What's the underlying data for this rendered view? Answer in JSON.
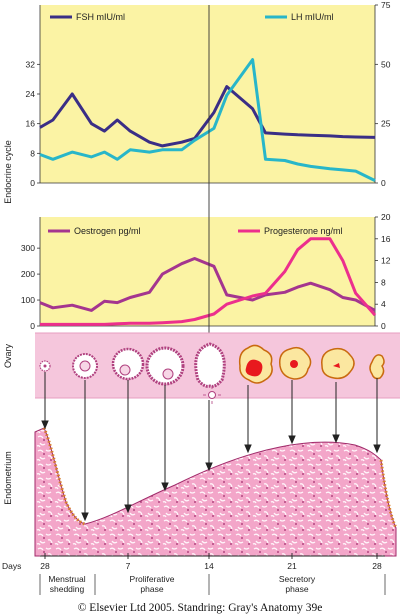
{
  "side_labels": {
    "endocrine": "Endocrine cycle",
    "ovary": "Ovary",
    "endometrium": "Endometrium"
  },
  "colors": {
    "panel_bg": "#fbf3a4",
    "fsh": "#3a2e86",
    "lh": "#28b6c9",
    "oestrogen": "#a4358f",
    "progesterone": "#ec2f8d",
    "ovary_band": "#f5c6dc",
    "endometrium": "#f09cc4"
  },
  "chart_data": [
    {
      "type": "line",
      "x": [
        0,
        2,
        5,
        8,
        10,
        12,
        14,
        17,
        19,
        22,
        24,
        27,
        29,
        33,
        35,
        38,
        40,
        42,
        45,
        47,
        49,
        52
      ],
      "series": [
        {
          "name": "FSH mIU/ml",
          "axis": "left",
          "values": [
            15,
            17,
            24,
            16,
            14,
            17,
            14,
            11,
            10,
            11,
            12,
            19,
            26,
            20,
            13.5,
            13.2,
            13,
            12.9,
            12.7,
            12.5,
            12.4,
            12.3
          ]
        },
        {
          "name": "LH mIU/ml",
          "axis": "right",
          "values": [
            12,
            10,
            13,
            11,
            13,
            10,
            14,
            13,
            14,
            14,
            18,
            23,
            37,
            52,
            10,
            9.5,
            8,
            7,
            6,
            5.5,
            5,
            1
          ]
        }
      ],
      "left_ticks": [
        0,
        8,
        16,
        24,
        32
      ],
      "right_ticks": [
        0,
        25,
        50,
        75
      ]
    },
    {
      "type": "line",
      "x": [
        0,
        2,
        5,
        8,
        10,
        12,
        14,
        17,
        19,
        22,
        24,
        27,
        29,
        33,
        35,
        38,
        40,
        42,
        45,
        47,
        49,
        52
      ],
      "series": [
        {
          "name": "Oestrogen pg/ml",
          "axis": "left",
          "values": [
            90,
            70,
            80,
            60,
            95,
            90,
            110,
            130,
            200,
            240,
            260,
            230,
            120,
            100,
            120,
            130,
            150,
            165,
            140,
            110,
            100,
            60
          ]
        },
        {
          "name": "Progesterone ng/ml",
          "axis": "right",
          "values": [
            0.3,
            0.3,
            0.3,
            0.3,
            0.3,
            0.4,
            0.5,
            0.5,
            0.6,
            0.8,
            1.2,
            2.2,
            4,
            5.5,
            6,
            10,
            14,
            16,
            16,
            12,
            6,
            2
          ]
        }
      ],
      "left_ticks": [
        0,
        100,
        200,
        300
      ],
      "right_ticks": [
        0,
        4,
        8,
        12,
        16,
        20
      ]
    }
  ],
  "days": {
    "label": "Days",
    "ticks": [
      "28",
      "7",
      "14",
      "21",
      "28"
    ]
  },
  "phases": [
    {
      "line1": "Menstrual",
      "line2": "shedding"
    },
    {
      "line1": "Proliferative",
      "line2": "phase"
    },
    {
      "line1": "Secretory",
      "line2": "phase"
    }
  ],
  "credit": "© Elsevier Ltd 2005. Standring: Gray's Anatomy 39e"
}
